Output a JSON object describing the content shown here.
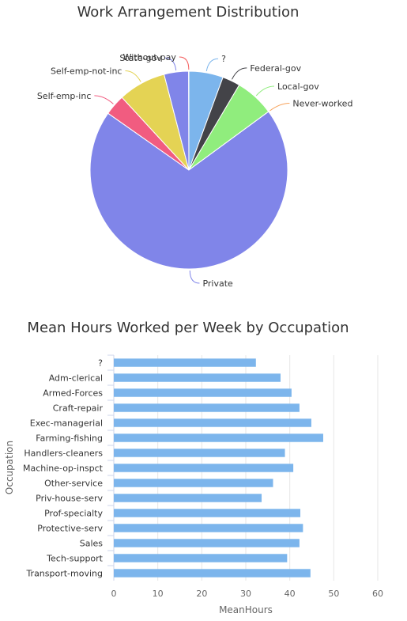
{
  "chart_data": [
    {
      "type": "pie",
      "title": "Work Arrangement Distribution",
      "categories": [
        "?",
        "Federal-gov",
        "Local-gov",
        "Never-worked",
        "Private",
        "Self-emp-inc",
        "Self-emp-not-inc",
        "State-gov",
        "Without-pay"
      ],
      "values": [
        5.6,
        2.9,
        6.4,
        0.02,
        69.7,
        3.4,
        7.8,
        4.0,
        0.04
      ],
      "colors": [
        "#7cb5ec",
        "#434348",
        "#90ed7d",
        "#f7a35c",
        "#8085e9",
        "#f15c80",
        "#e4d354",
        "#8085e9",
        "#f45b5b"
      ]
    },
    {
      "type": "bar",
      "orientation": "horizontal",
      "title": "Mean Hours Worked per Week by Occupation",
      "xlabel": "MeanHours",
      "ylabel": "Occupation",
      "categories": [
        "?",
        "Adm-clerical",
        "Armed-Forces",
        "Craft-repair",
        "Exec-managerial",
        "Farming-fishing",
        "Handlers-cleaners",
        "Machine-op-inspct",
        "Other-service",
        "Priv-house-serv",
        "Prof-specialty",
        "Protective-serv",
        "Sales",
        "Tech-support",
        "Transport-moving"
      ],
      "values": [
        32.3,
        37.9,
        40.4,
        42.2,
        44.9,
        47.6,
        38.9,
        40.8,
        36.2,
        33.6,
        42.4,
        43.0,
        42.2,
        39.4,
        44.7
      ],
      "xlim": [
        0,
        60
      ],
      "xticks": [
        0,
        10,
        20,
        30,
        40,
        50,
        60
      ],
      "bar_color": "#7cb5ec",
      "grid": true
    }
  ]
}
